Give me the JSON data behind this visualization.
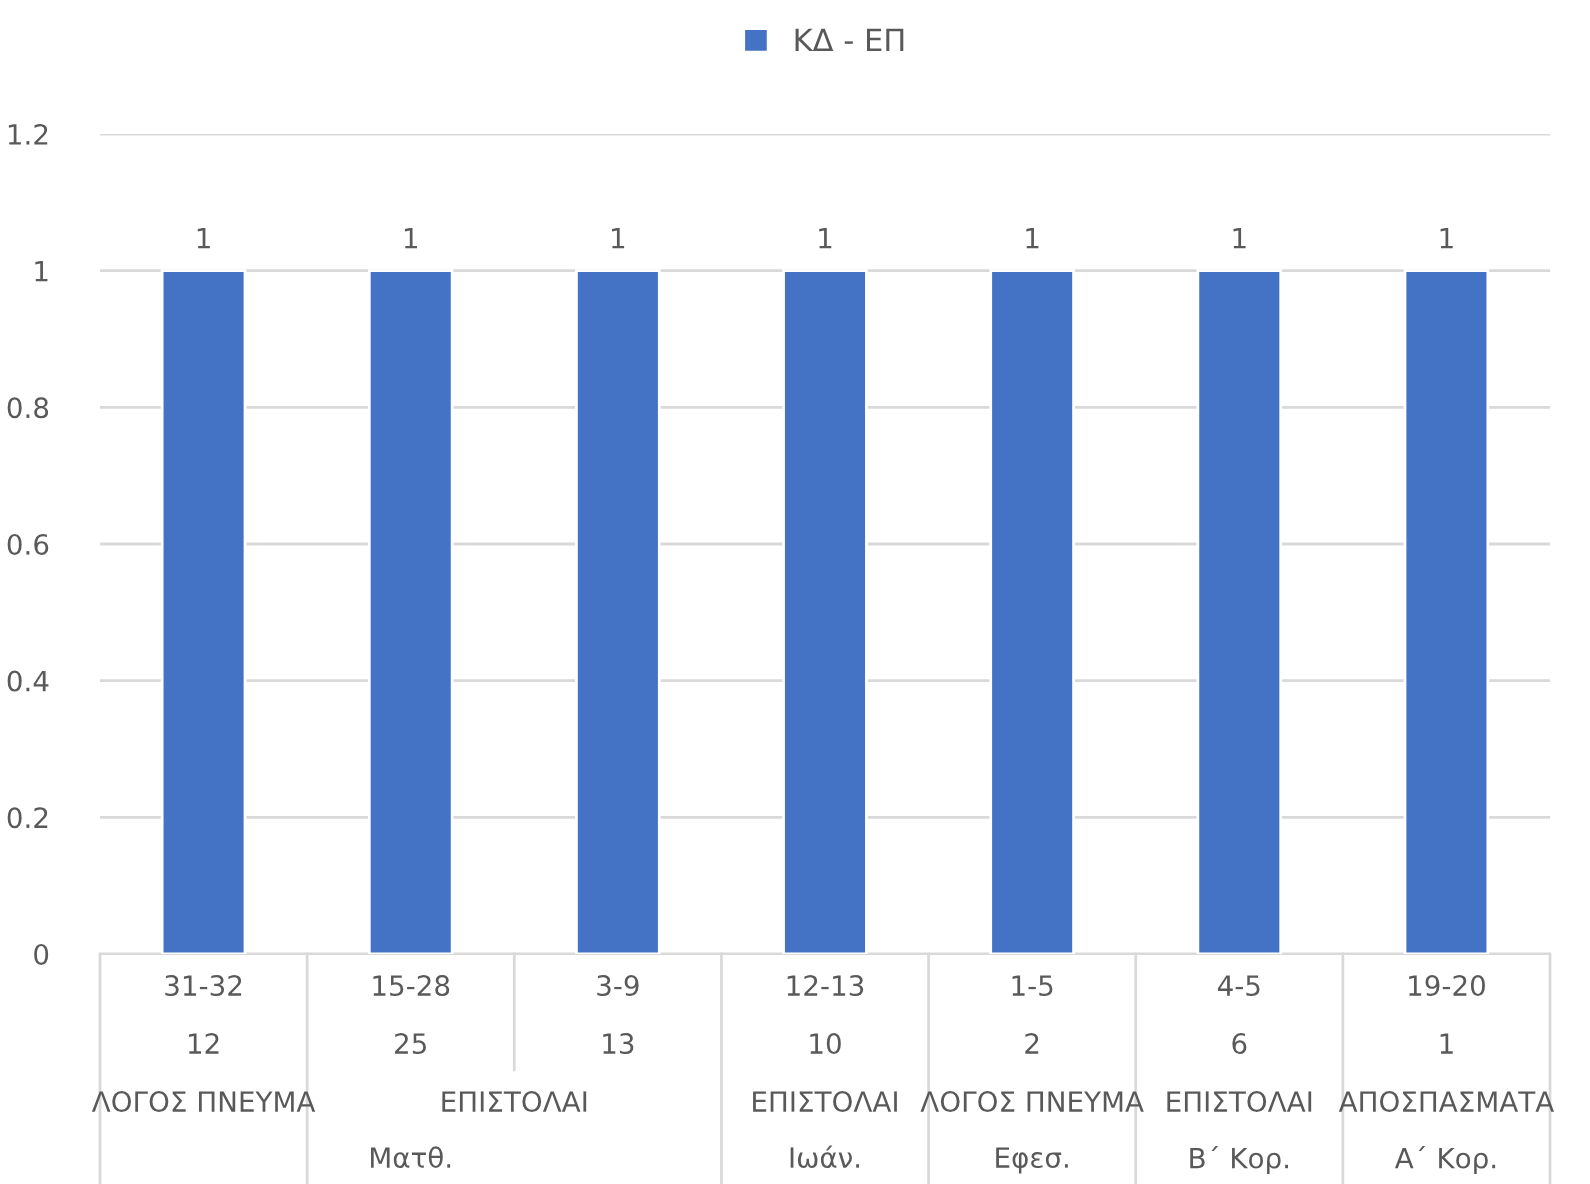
{
  "chart_data": {
    "type": "bar",
    "categories": [
      "31-32\n12",
      "15-28\n25",
      "3-9\n13",
      "12-13\n10",
      "1-5\n2",
      "4-5\n6",
      "19-20\n1"
    ],
    "series": [
      {
        "name": "ΚΔ - ΕΠ",
        "color": "#4472c4",
        "values": [
          1,
          1,
          1,
          1,
          1,
          1,
          1
        ]
      }
    ],
    "annotations": [
      "ΛΟΓΟΣ ΠΝΕΥΜΑ",
      "ΕΠΙΣΤΟΛΑΙ",
      "ΕΠΙΣΤΟΛΑΙ",
      "ΛΟΓΟΣ ΠΝΕΥΜΑ",
      "ΕΠΙΣΤΟΛΑΙ",
      "ΑΠΟΣΠΑΣΜΑΤΑ",
      "Ματθ.",
      "Ιωάν.",
      "Εφεσ.",
      "Β΄ Κορ.",
      "Α΄ Κορ."
    ],
    "ylim": [
      0,
      1.2
    ],
    "yticks": [
      0,
      0.2,
      0.4,
      0.6,
      0.8,
      1,
      1.2
    ],
    "grid": "y",
    "legend": "top",
    "data_labels": true
  }
}
